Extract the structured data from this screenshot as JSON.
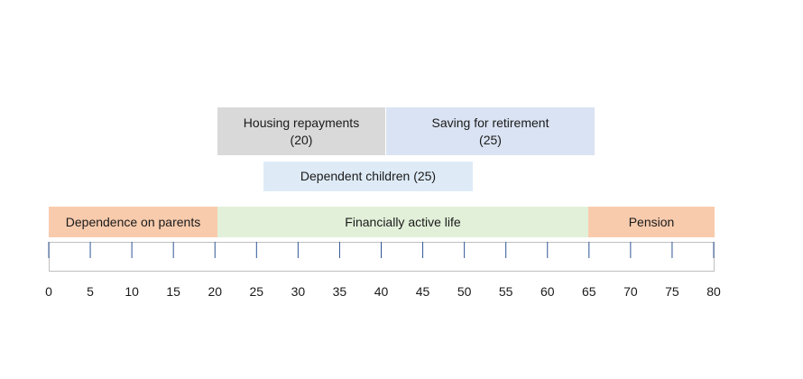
{
  "colors": {
    "housing": "#d9d9d9",
    "saving": "#dae3f3",
    "children": "#deebf7",
    "parents": "#f8cbad",
    "active": "#e2f0d9",
    "pension": "#f8cbad",
    "tick": "#2f5597"
  },
  "blocks": {
    "housing": {
      "line1": "Housing repayments",
      "line2": "(20)"
    },
    "saving": {
      "line1": "Saving for retirement",
      "line2": "(25)"
    },
    "children": {
      "label": "Dependent children (25)"
    },
    "parents": {
      "label": "Dependence on parents"
    },
    "active": {
      "label": "Financially active life"
    },
    "pension": {
      "label": "Pension"
    }
  },
  "axis": {
    "ticks": [
      "0",
      "5",
      "10",
      "15",
      "20",
      "25",
      "30",
      "35",
      "40",
      "45",
      "50",
      "55",
      "60",
      "65",
      "70",
      "75",
      "80"
    ]
  }
}
